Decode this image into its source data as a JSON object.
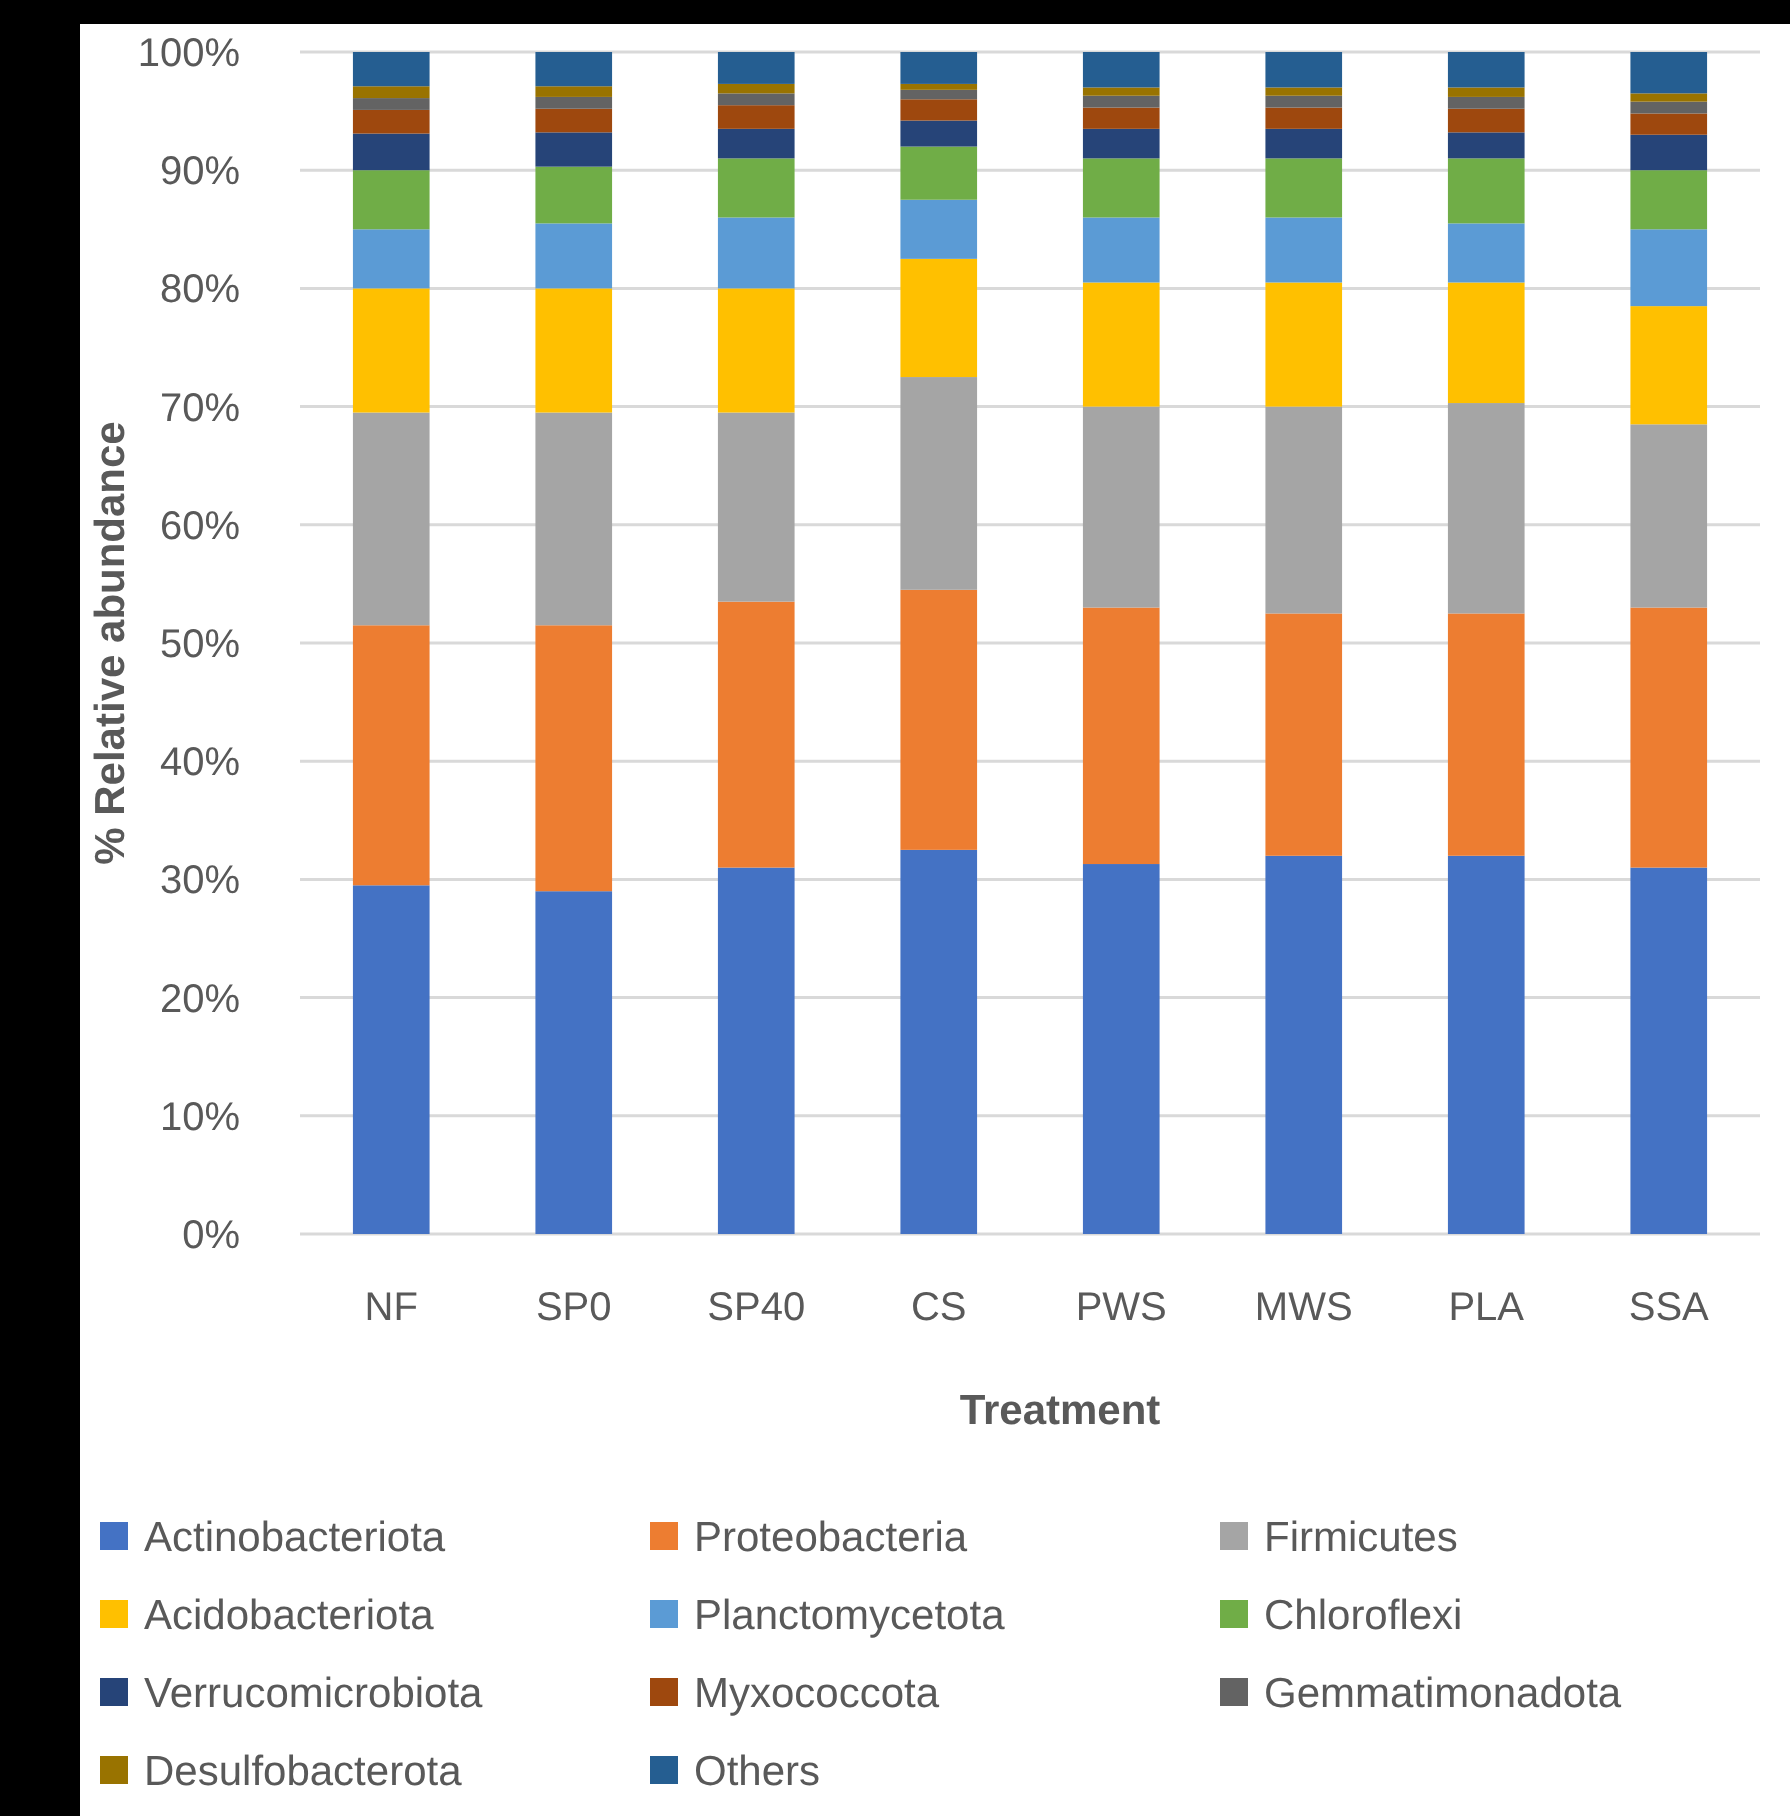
{
  "chart_data": {
    "type": "bar",
    "stacked": true,
    "xlabel": "Treatment",
    "ylabel": "% Relative abundance",
    "categories": [
      "NF",
      "SP0",
      "SP40",
      "CS",
      "PWS",
      "MWS",
      "PLA",
      "SSA"
    ],
    "series": [
      {
        "name": "Actinobacteriota",
        "color": "#4472c4",
        "values": [
          29.5,
          29,
          31,
          32.5,
          31.3,
          32,
          32,
          31
        ]
      },
      {
        "name": "Proteobacteria",
        "color": "#ed7d31",
        "values": [
          22,
          22.5,
          22.5,
          22,
          21.7,
          20.5,
          20.5,
          22
        ]
      },
      {
        "name": "Firmicutes",
        "color": "#a5a5a5",
        "values": [
          18,
          18,
          16,
          18,
          17,
          17.5,
          17.8,
          15.5
        ]
      },
      {
        "name": "Acidobacteriota",
        "color": "#ffc000",
        "values": [
          10.5,
          10.5,
          10.5,
          10,
          10.5,
          10.5,
          10.2,
          10
        ]
      },
      {
        "name": "Planctomycetota",
        "color": "#5b9bd5",
        "values": [
          5,
          5.5,
          6,
          5,
          5.5,
          5.5,
          5,
          6.5
        ]
      },
      {
        "name": "Chloroflexi",
        "color": "#70ad47",
        "values": [
          5,
          4.8,
          5,
          4.5,
          5,
          5,
          5.5,
          5
        ]
      },
      {
        "name": "Verrucomicrobiota",
        "color": "#264478",
        "values": [
          3.1,
          2.9,
          2.5,
          2.2,
          2.5,
          2.5,
          2.2,
          3
        ]
      },
      {
        "name": "Myxococcota",
        "color": "#9e480e",
        "values": [
          2,
          2,
          2,
          1.8,
          1.8,
          1.8,
          2,
          1.8
        ]
      },
      {
        "name": "Gemmatimonadota",
        "color": "#636363",
        "values": [
          1,
          1,
          1,
          0.8,
          1,
          1,
          1,
          1
        ]
      },
      {
        "name": "Desulfobacterota",
        "color": "#997300",
        "values": [
          1,
          0.9,
          0.8,
          0.5,
          0.7,
          0.7,
          0.8,
          0.7
        ]
      },
      {
        "name": "Others",
        "color": "#255e91",
        "values": [
          2.9,
          2.9,
          2.7,
          2.7,
          3,
          3,
          3,
          3.5
        ]
      }
    ],
    "ylim": [
      0,
      100
    ],
    "yticks": [
      {
        "value": 0,
        "label": "0%"
      },
      {
        "value": 10,
        "label": "10%"
      },
      {
        "value": 20,
        "label": "20%"
      },
      {
        "value": 30,
        "label": "30%"
      },
      {
        "value": 40,
        "label": "40%"
      },
      {
        "value": 50,
        "label": "50%"
      },
      {
        "value": 60,
        "label": "60%"
      },
      {
        "value": 70,
        "label": "70%"
      },
      {
        "value": 80,
        "label": "80%"
      },
      {
        "value": 90,
        "label": "90%"
      },
      {
        "value": 100,
        "label": "100%"
      }
    ],
    "grid": "y",
    "legend": "bottom"
  }
}
